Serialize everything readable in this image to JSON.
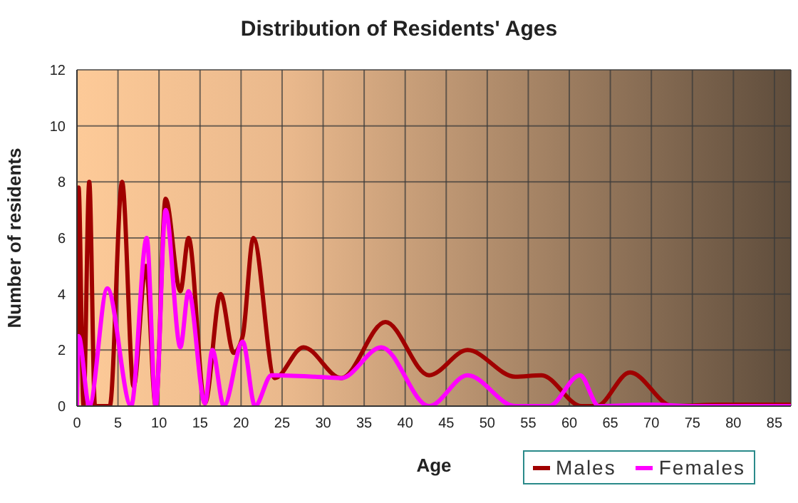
{
  "chart_data": {
    "type": "line",
    "title": "Distribution of Residents' Ages",
    "xlabel": "Age",
    "ylabel": "Number of residents",
    "xlim": [
      0,
      87
    ],
    "xticks": [
      0,
      5,
      10,
      15,
      20,
      25,
      30,
      35,
      40,
      45,
      50,
      55,
      60,
      65,
      70,
      75,
      80,
      85
    ],
    "ylim": [
      0,
      12
    ],
    "yticks": [
      0,
      2,
      4,
      6,
      8,
      10,
      12
    ],
    "grid": true,
    "legend": "bottom right",
    "marker": "none",
    "line_style": "solid",
    "series": [
      {
        "name": "Males",
        "color": "#a00000",
        "x": [
          0,
          0.2,
          0.8,
          1.5,
          2.2,
          4,
          5.5,
          6.9,
          8.4,
          9.6,
          10.8,
          12.6,
          13.6,
          15.6,
          17.5,
          19.1,
          20.2,
          21.5,
          24.1,
          27.6,
          32.2,
          37.6,
          42.9,
          47.6,
          53.4,
          56.6,
          61.5,
          63.3,
          67.4,
          72.6,
          78.4,
          87
        ],
        "values": [
          0,
          7.8,
          0,
          8,
          0,
          0,
          8,
          0.7,
          5,
          0,
          7.4,
          4.1,
          6,
          0.1,
          4,
          1.9,
          2.5,
          6,
          1,
          2.1,
          1,
          3,
          1.1,
          2,
          1.05,
          1.1,
          0,
          0,
          1.2,
          0,
          0.05,
          0.05
        ]
      },
      {
        "name": "Females",
        "color": "#ff00ff",
        "x": [
          0,
          0.2,
          1.5,
          3.7,
          6.6,
          8.5,
          9.6,
          10.8,
          12.6,
          13.6,
          15.6,
          16.5,
          17.9,
          20.2,
          21.7,
          23.7,
          29,
          32.2,
          37.1,
          42.9,
          47.6,
          53.4,
          57.5,
          61.3,
          63.6,
          70,
          75,
          87
        ],
        "values": [
          0,
          2.5,
          0,
          4.2,
          0,
          6,
          0,
          7,
          2.1,
          4.1,
          0.1,
          2,
          0,
          2.3,
          0,
          1.1,
          1.05,
          1,
          2.1,
          0,
          1.1,
          0,
          0,
          1.1,
          0,
          0.05,
          0,
          0
        ]
      }
    ]
  }
}
